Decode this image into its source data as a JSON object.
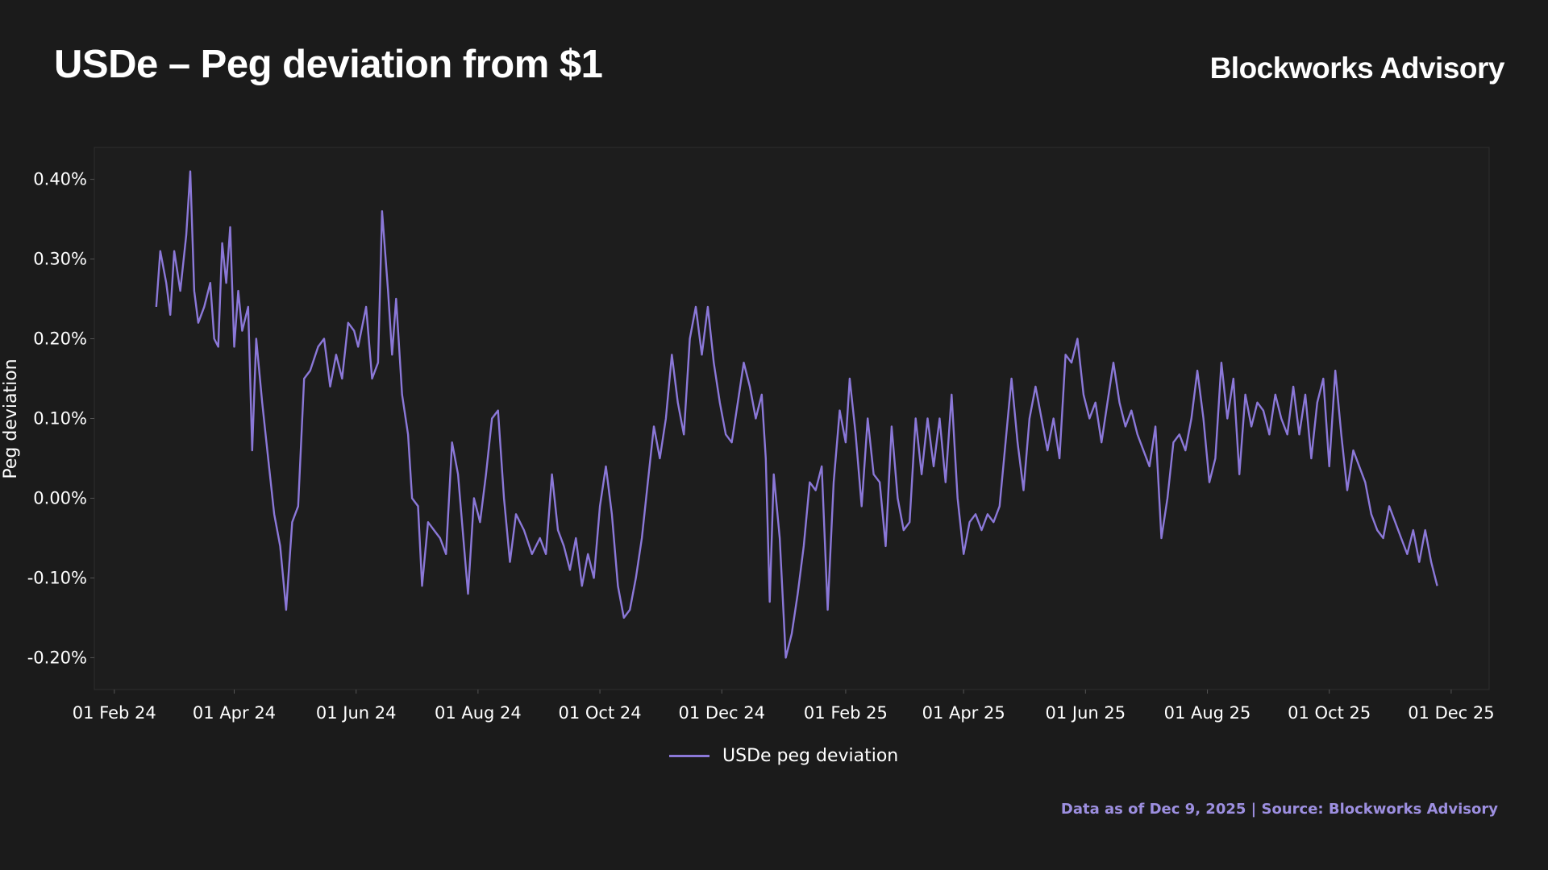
{
  "header": {
    "title": "USDe – Peg deviation from $1",
    "brand": "Blockworks Advisory"
  },
  "footer": {
    "source": "Data as of Dec 9, 2025 | Source: Blockworks Advisory"
  },
  "colors": {
    "background": "#1b1b1b",
    "plot_background": "#1d1d1d",
    "line": "#8b78d8",
    "source_text": "#9d8fe0"
  },
  "chart_data": {
    "type": "line",
    "ylabel": "Peg deviation",
    "xlabel": "",
    "ylim": [
      -0.24,
      0.44
    ],
    "xlim": [
      "2024-01-22",
      "2025-12-20"
    ],
    "grid": false,
    "legend_position": "bottom-center",
    "y_ticks": [
      {
        "value": 0.4,
        "label": "0.40%"
      },
      {
        "value": 0.3,
        "label": "0.30%"
      },
      {
        "value": 0.2,
        "label": "0.20%"
      },
      {
        "value": 0.1,
        "label": "0.10%"
      },
      {
        "value": 0.0,
        "label": "0.00%"
      },
      {
        "value": -0.1,
        "label": "-0.10%"
      },
      {
        "value": -0.2,
        "label": "-0.20%"
      }
    ],
    "x_ticks": [
      {
        "value": "2024-02-01",
        "label": "01 Feb 24"
      },
      {
        "value": "2024-04-01",
        "label": "01 Apr 24"
      },
      {
        "value": "2024-06-01",
        "label": "01 Jun 24"
      },
      {
        "value": "2024-08-01",
        "label": "01 Aug 24"
      },
      {
        "value": "2024-10-01",
        "label": "01 Oct 24"
      },
      {
        "value": "2024-12-01",
        "label": "01 Dec 24"
      },
      {
        "value": "2025-02-01",
        "label": "01 Feb 25"
      },
      {
        "value": "2025-04-01",
        "label": "01 Apr 25"
      },
      {
        "value": "2025-06-01",
        "label": "01 Jun 25"
      },
      {
        "value": "2025-08-01",
        "label": "01 Aug 25"
      },
      {
        "value": "2025-10-01",
        "label": "01 Oct 25"
      },
      {
        "value": "2025-12-01",
        "label": "01 Dec 25"
      }
    ],
    "series": [
      {
        "name": "USDe peg deviation",
        "points": [
          [
            "2024-02-22",
            0.24
          ],
          [
            "2024-02-24",
            0.31
          ],
          [
            "2024-02-27",
            0.27
          ],
          [
            "2024-02-29",
            0.23
          ],
          [
            "2024-03-02",
            0.31
          ],
          [
            "2024-03-05",
            0.26
          ],
          [
            "2024-03-08",
            0.33
          ],
          [
            "2024-03-10",
            0.41
          ],
          [
            "2024-03-12",
            0.26
          ],
          [
            "2024-03-14",
            0.22
          ],
          [
            "2024-03-17",
            0.24
          ],
          [
            "2024-03-20",
            0.27
          ],
          [
            "2024-03-22",
            0.2
          ],
          [
            "2024-03-24",
            0.19
          ],
          [
            "2024-03-26",
            0.32
          ],
          [
            "2024-03-28",
            0.27
          ],
          [
            "2024-03-30",
            0.34
          ],
          [
            "2024-04-01",
            0.19
          ],
          [
            "2024-04-03",
            0.26
          ],
          [
            "2024-04-05",
            0.21
          ],
          [
            "2024-04-08",
            0.24
          ],
          [
            "2024-04-10",
            0.06
          ],
          [
            "2024-04-12",
            0.2
          ],
          [
            "2024-04-15",
            0.12
          ],
          [
            "2024-04-18",
            0.05
          ],
          [
            "2024-04-21",
            -0.02
          ],
          [
            "2024-04-24",
            -0.06
          ],
          [
            "2024-04-27",
            -0.14
          ],
          [
            "2024-04-30",
            -0.03
          ],
          [
            "2024-05-03",
            -0.01
          ],
          [
            "2024-05-06",
            0.15
          ],
          [
            "2024-05-09",
            0.16
          ],
          [
            "2024-05-13",
            0.19
          ],
          [
            "2024-05-16",
            0.2
          ],
          [
            "2024-05-19",
            0.14
          ],
          [
            "2024-05-22",
            0.18
          ],
          [
            "2024-05-25",
            0.15
          ],
          [
            "2024-05-28",
            0.22
          ],
          [
            "2024-05-31",
            0.21
          ],
          [
            "2024-06-02",
            0.19
          ],
          [
            "2024-06-06",
            0.24
          ],
          [
            "2024-06-09",
            0.15
          ],
          [
            "2024-06-12",
            0.17
          ],
          [
            "2024-06-14",
            0.36
          ],
          [
            "2024-06-17",
            0.26
          ],
          [
            "2024-06-19",
            0.18
          ],
          [
            "2024-06-21",
            0.25
          ],
          [
            "2024-06-24",
            0.13
          ],
          [
            "2024-06-27",
            0.08
          ],
          [
            "2024-06-29",
            0.0
          ],
          [
            "2024-07-02",
            -0.01
          ],
          [
            "2024-07-04",
            -0.11
          ],
          [
            "2024-07-07",
            -0.03
          ],
          [
            "2024-07-10",
            -0.04
          ],
          [
            "2024-07-13",
            -0.05
          ],
          [
            "2024-07-16",
            -0.07
          ],
          [
            "2024-07-19",
            0.07
          ],
          [
            "2024-07-22",
            0.03
          ],
          [
            "2024-07-25",
            -0.06
          ],
          [
            "2024-07-27",
            -0.12
          ],
          [
            "2024-07-30",
            0.0
          ],
          [
            "2024-08-02",
            -0.03
          ],
          [
            "2024-08-05",
            0.03
          ],
          [
            "2024-08-08",
            0.1
          ],
          [
            "2024-08-11",
            0.11
          ],
          [
            "2024-08-14",
            0.0
          ],
          [
            "2024-08-17",
            -0.08
          ],
          [
            "2024-08-20",
            -0.02
          ],
          [
            "2024-08-24",
            -0.04
          ],
          [
            "2024-08-28",
            -0.07
          ],
          [
            "2024-09-01",
            -0.05
          ],
          [
            "2024-09-04",
            -0.07
          ],
          [
            "2024-09-07",
            0.03
          ],
          [
            "2024-09-10",
            -0.04
          ],
          [
            "2024-09-13",
            -0.06
          ],
          [
            "2024-09-16",
            -0.09
          ],
          [
            "2024-09-19",
            -0.05
          ],
          [
            "2024-09-22",
            -0.11
          ],
          [
            "2024-09-25",
            -0.07
          ],
          [
            "2024-09-28",
            -0.1
          ],
          [
            "2024-10-01",
            -0.01
          ],
          [
            "2024-10-04",
            0.04
          ],
          [
            "2024-10-07",
            -0.02
          ],
          [
            "2024-10-10",
            -0.11
          ],
          [
            "2024-10-13",
            -0.15
          ],
          [
            "2024-10-16",
            -0.14
          ],
          [
            "2024-10-19",
            -0.1
          ],
          [
            "2024-10-22",
            -0.05
          ],
          [
            "2024-10-25",
            0.02
          ],
          [
            "2024-10-28",
            0.09
          ],
          [
            "2024-10-31",
            0.05
          ],
          [
            "2024-11-03",
            0.1
          ],
          [
            "2024-11-06",
            0.18
          ],
          [
            "2024-11-09",
            0.12
          ],
          [
            "2024-11-12",
            0.08
          ],
          [
            "2024-11-15",
            0.2
          ],
          [
            "2024-11-18",
            0.24
          ],
          [
            "2024-11-21",
            0.18
          ],
          [
            "2024-11-24",
            0.24
          ],
          [
            "2024-11-27",
            0.17
          ],
          [
            "2024-11-30",
            0.12
          ],
          [
            "2024-12-03",
            0.08
          ],
          [
            "2024-12-06",
            0.07
          ],
          [
            "2024-12-09",
            0.12
          ],
          [
            "2024-12-12",
            0.17
          ],
          [
            "2024-12-15",
            0.14
          ],
          [
            "2024-12-18",
            0.1
          ],
          [
            "2024-12-21",
            0.13
          ],
          [
            "2024-12-23",
            0.05
          ],
          [
            "2024-12-25",
            -0.13
          ],
          [
            "2024-12-27",
            0.03
          ],
          [
            "2024-12-30",
            -0.05
          ],
          [
            "2025-01-02",
            -0.2
          ],
          [
            "2025-01-05",
            -0.17
          ],
          [
            "2025-01-08",
            -0.12
          ],
          [
            "2025-01-11",
            -0.06
          ],
          [
            "2025-01-14",
            0.02
          ],
          [
            "2025-01-17",
            0.01
          ],
          [
            "2025-01-20",
            0.04
          ],
          [
            "2025-01-23",
            -0.14
          ],
          [
            "2025-01-26",
            0.02
          ],
          [
            "2025-01-29",
            0.11
          ],
          [
            "2025-02-01",
            0.07
          ],
          [
            "2025-02-03",
            0.15
          ],
          [
            "2025-02-06",
            0.08
          ],
          [
            "2025-02-09",
            -0.01
          ],
          [
            "2025-02-12",
            0.1
          ],
          [
            "2025-02-15",
            0.03
          ],
          [
            "2025-02-18",
            0.02
          ],
          [
            "2025-02-21",
            -0.06
          ],
          [
            "2025-02-24",
            0.09
          ],
          [
            "2025-02-27",
            0.0
          ],
          [
            "2025-03-02",
            -0.04
          ],
          [
            "2025-03-05",
            -0.03
          ],
          [
            "2025-03-08",
            0.1
          ],
          [
            "2025-03-11",
            0.03
          ],
          [
            "2025-03-14",
            0.1
          ],
          [
            "2025-03-17",
            0.04
          ],
          [
            "2025-03-20",
            0.1
          ],
          [
            "2025-03-23",
            0.02
          ],
          [
            "2025-03-26",
            0.13
          ],
          [
            "2025-03-29",
            0.0
          ],
          [
            "2025-04-01",
            -0.07
          ],
          [
            "2025-04-04",
            -0.03
          ],
          [
            "2025-04-07",
            -0.02
          ],
          [
            "2025-04-10",
            -0.04
          ],
          [
            "2025-04-13",
            -0.02
          ],
          [
            "2025-04-16",
            -0.03
          ],
          [
            "2025-04-19",
            -0.01
          ],
          [
            "2025-04-22",
            0.07
          ],
          [
            "2025-04-25",
            0.15
          ],
          [
            "2025-04-28",
            0.07
          ],
          [
            "2025-05-01",
            0.01
          ],
          [
            "2025-05-04",
            0.1
          ],
          [
            "2025-05-07",
            0.14
          ],
          [
            "2025-05-10",
            0.1
          ],
          [
            "2025-05-13",
            0.06
          ],
          [
            "2025-05-16",
            0.1
          ],
          [
            "2025-05-19",
            0.05
          ],
          [
            "2025-05-22",
            0.18
          ],
          [
            "2025-05-25",
            0.17
          ],
          [
            "2025-05-28",
            0.2
          ],
          [
            "2025-05-31",
            0.13
          ],
          [
            "2025-06-03",
            0.1
          ],
          [
            "2025-06-06",
            0.12
          ],
          [
            "2025-06-09",
            0.07
          ],
          [
            "2025-06-12",
            0.12
          ],
          [
            "2025-06-15",
            0.17
          ],
          [
            "2025-06-18",
            0.12
          ],
          [
            "2025-06-21",
            0.09
          ],
          [
            "2025-06-24",
            0.11
          ],
          [
            "2025-06-27",
            0.08
          ],
          [
            "2025-06-30",
            0.06
          ],
          [
            "2025-07-03",
            0.04
          ],
          [
            "2025-07-06",
            0.09
          ],
          [
            "2025-07-09",
            -0.05
          ],
          [
            "2025-07-12",
            0.0
          ],
          [
            "2025-07-15",
            0.07
          ],
          [
            "2025-07-18",
            0.08
          ],
          [
            "2025-07-21",
            0.06
          ],
          [
            "2025-07-24",
            0.1
          ],
          [
            "2025-07-27",
            0.16
          ],
          [
            "2025-07-30",
            0.1
          ],
          [
            "2025-08-02",
            0.02
          ],
          [
            "2025-08-05",
            0.05
          ],
          [
            "2025-08-08",
            0.17
          ],
          [
            "2025-08-11",
            0.1
          ],
          [
            "2025-08-14",
            0.15
          ],
          [
            "2025-08-17",
            0.03
          ],
          [
            "2025-08-20",
            0.13
          ],
          [
            "2025-08-23",
            0.09
          ],
          [
            "2025-08-26",
            0.12
          ],
          [
            "2025-08-29",
            0.11
          ],
          [
            "2025-09-01",
            0.08
          ],
          [
            "2025-09-04",
            0.13
          ],
          [
            "2025-09-07",
            0.1
          ],
          [
            "2025-09-10",
            0.08
          ],
          [
            "2025-09-13",
            0.14
          ],
          [
            "2025-09-16",
            0.08
          ],
          [
            "2025-09-19",
            0.13
          ],
          [
            "2025-09-22",
            0.05
          ],
          [
            "2025-09-25",
            0.12
          ],
          [
            "2025-09-28",
            0.15
          ],
          [
            "2025-10-01",
            0.04
          ],
          [
            "2025-10-04",
            0.16
          ],
          [
            "2025-10-07",
            0.08
          ],
          [
            "2025-10-10",
            0.01
          ],
          [
            "2025-10-13",
            0.06
          ],
          [
            "2025-10-16",
            0.04
          ],
          [
            "2025-10-19",
            0.02
          ],
          [
            "2025-10-22",
            -0.02
          ],
          [
            "2025-10-25",
            -0.04
          ],
          [
            "2025-10-28",
            -0.05
          ],
          [
            "2025-10-31",
            -0.01
          ],
          [
            "2025-11-03",
            -0.03
          ],
          [
            "2025-11-06",
            -0.05
          ],
          [
            "2025-11-09",
            -0.07
          ],
          [
            "2025-11-12",
            -0.04
          ],
          [
            "2025-11-15",
            -0.08
          ],
          [
            "2025-11-18",
            -0.04
          ],
          [
            "2025-11-21",
            -0.08
          ],
          [
            "2025-11-24",
            -0.11
          ]
        ]
      }
    ]
  }
}
